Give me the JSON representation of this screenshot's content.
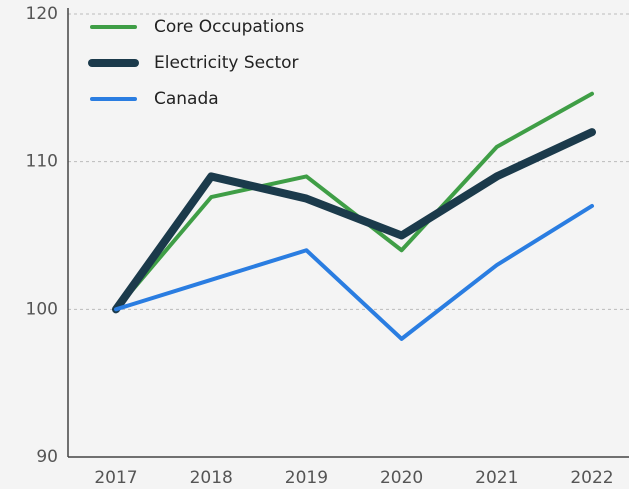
{
  "chart_data": {
    "type": "line",
    "categories": [
      "2017",
      "2018",
      "2019",
      "2020",
      "2021",
      "2022"
    ],
    "series": [
      {
        "name": "Core Occupations",
        "color": "#3f9e46",
        "values": [
          100,
          107.6,
          109,
          104,
          111,
          114.6
        ]
      },
      {
        "name": "Electricity Sector",
        "color": "#1b3a4b",
        "values": [
          100,
          109,
          107.5,
          105,
          109,
          112
        ]
      },
      {
        "name": "Canada",
        "color": "#2a7de1",
        "values": [
          100,
          102,
          104,
          98,
          103,
          107
        ]
      }
    ],
    "ylim": [
      90,
      120
    ],
    "yticks": [
      90,
      100,
      110,
      120
    ],
    "grid": true,
    "legend": "top-left"
  }
}
